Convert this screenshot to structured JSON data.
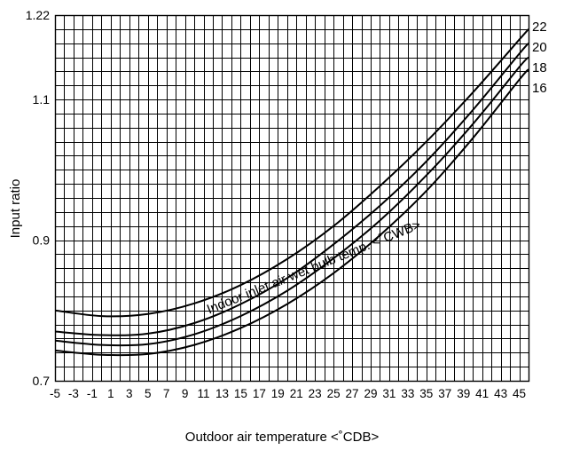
{
  "chart_data": {
    "type": "line",
    "xlabel": "Outdoor air temperature <˚CDB>",
    "ylabel": "Input ratio",
    "annotation": "Indoor inlet air wet bulb temp. <˚CWB>",
    "xlim": [
      -5,
      46
    ],
    "ylim": [
      0.7,
      1.22
    ],
    "x_ticks": [
      -5,
      -3,
      -1,
      1,
      3,
      5,
      7,
      9,
      11,
      13,
      15,
      17,
      19,
      21,
      23,
      25,
      27,
      29,
      31,
      33,
      35,
      37,
      39,
      41,
      43,
      45
    ],
    "y_tick_labels": [
      "1.22",
      "1.1",
      "0.9",
      "0.7"
    ],
    "y_tick_values": [
      1.22,
      1.1,
      0.9,
      0.7
    ],
    "grid": true,
    "x": [
      -5,
      0,
      5,
      10,
      15,
      20,
      25,
      30,
      35,
      40,
      45,
      46
    ],
    "series": [
      {
        "name": "22",
        "values": [
          0.8,
          0.792,
          0.795,
          0.81,
          0.836,
          0.873,
          0.92,
          0.977,
          1.04,
          1.11,
          1.185,
          1.2
        ]
      },
      {
        "name": "20",
        "values": [
          0.77,
          0.765,
          0.767,
          0.782,
          0.809,
          0.846,
          0.894,
          0.949,
          1.012,
          1.085,
          1.165,
          1.18
        ]
      },
      {
        "name": "18",
        "values": [
          0.757,
          0.751,
          0.752,
          0.766,
          0.792,
          0.828,
          0.874,
          0.928,
          0.992,
          1.065,
          1.146,
          1.16
        ]
      },
      {
        "name": "16",
        "values": [
          0.743,
          0.737,
          0.738,
          0.751,
          0.775,
          0.809,
          0.853,
          0.907,
          0.97,
          1.045,
          1.128,
          1.143
        ]
      }
    ]
  }
}
